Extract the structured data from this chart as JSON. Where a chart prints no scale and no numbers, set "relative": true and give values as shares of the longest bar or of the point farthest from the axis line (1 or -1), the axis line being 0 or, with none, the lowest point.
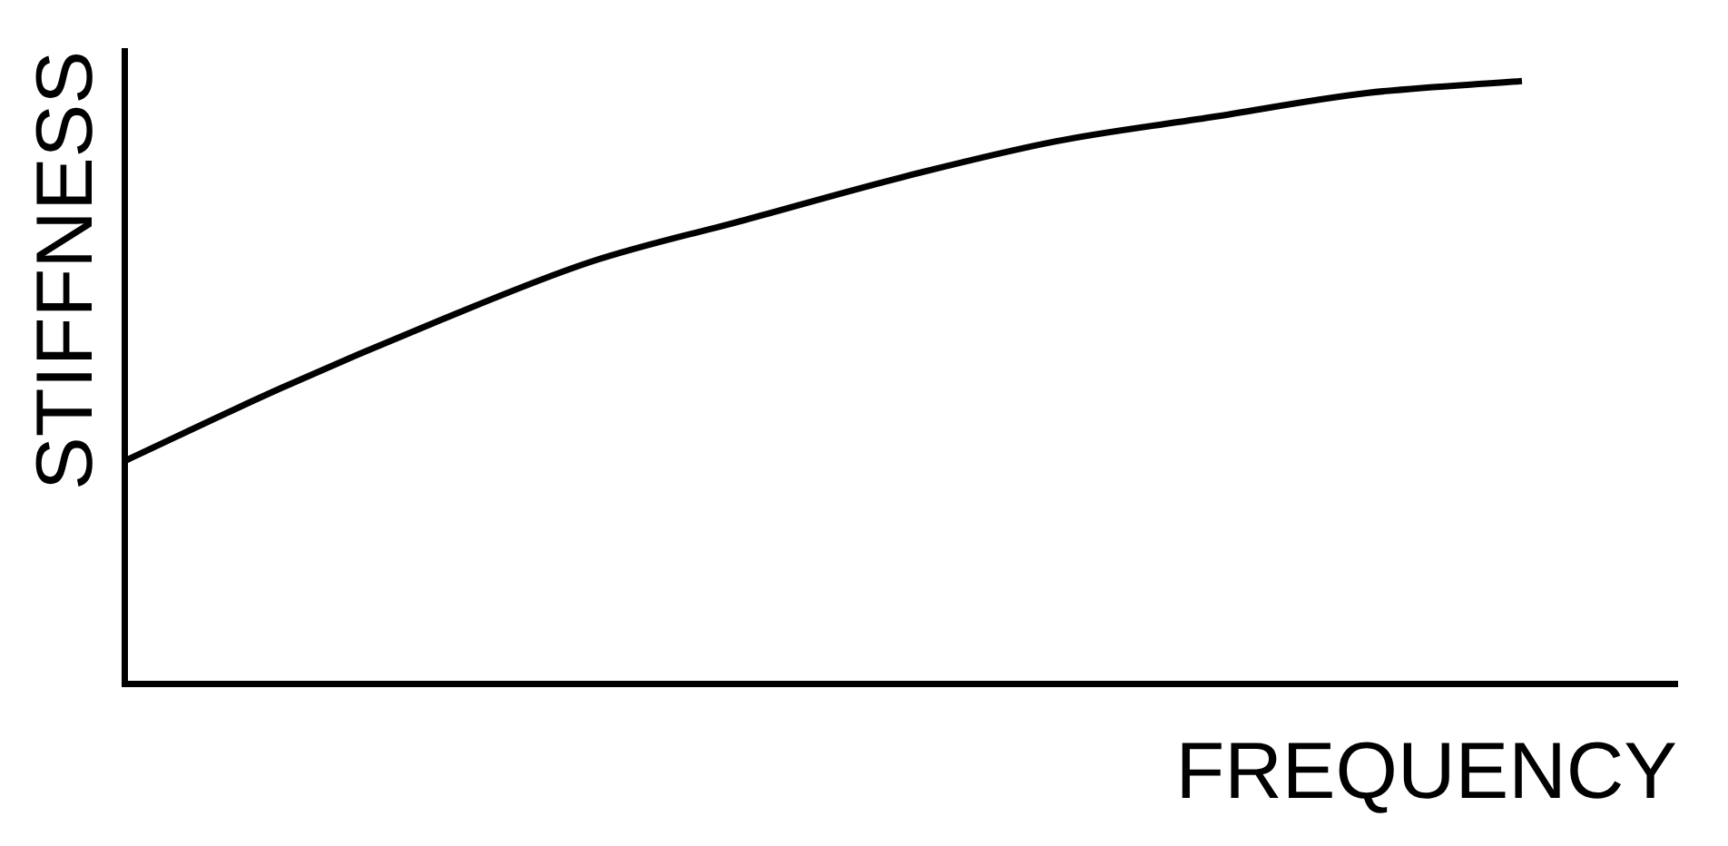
{
  "chart_data": {
    "type": "line",
    "xlabel": "FREQUENCY",
    "ylabel": "STIFFNESS",
    "relative": true,
    "categories": [
      null,
      null,
      null,
      null,
      null,
      null,
      null,
      null,
      null,
      null,
      null
    ],
    "series": [
      {
        "color": "#000000",
        "values": [
          0.37,
          0.49,
          0.6,
          0.7,
          0.77,
          0.84,
          0.9,
          0.94,
          0.98,
          1,
          null
        ]
      }
    ],
    "grid": false,
    "legend": false,
    "marker": "none",
    "line_style": "solid"
  }
}
